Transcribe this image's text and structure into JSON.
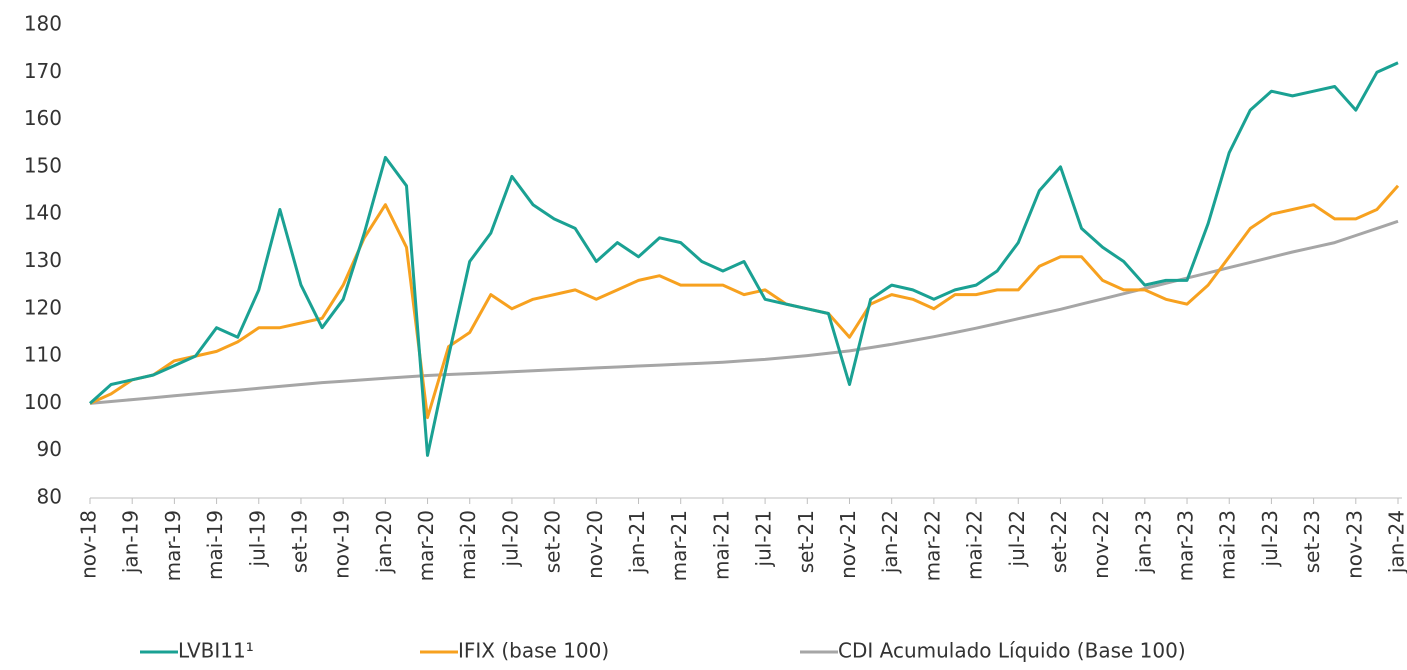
{
  "chart_data": {
    "type": "line",
    "categories": [
      "nov-18",
      null,
      "jan-19",
      null,
      "mar-19",
      null,
      "mai-19",
      null,
      "jul-19",
      null,
      "set-19",
      null,
      "nov-19",
      null,
      "jan-20",
      null,
      "mar-20",
      null,
      "mai-20",
      null,
      "jul-20",
      null,
      "set-20",
      null,
      "nov-20",
      null,
      "jan-21",
      null,
      "mar-21",
      null,
      "mai-21",
      null,
      "jul-21",
      null,
      "set-21",
      null,
      "nov-21",
      null,
      "jan-22",
      null,
      "mar-22",
      null,
      "mai-22",
      null,
      "jul-22",
      null,
      "set-22",
      null,
      "nov-22",
      null,
      "jan-23",
      null,
      "mar-23",
      null,
      "mai-23",
      null,
      "jul-23",
      null,
      "set-23",
      null,
      "nov-23",
      null,
      "jan-24"
    ],
    "series": [
      {
        "name": "LVBI11¹",
        "color": "#1aa193",
        "values": [
          100,
          104,
          105,
          106,
          108,
          110,
          116,
          114,
          124,
          141,
          125,
          116,
          122,
          136,
          152,
          146,
          89,
          110,
          130,
          136,
          148,
          142,
          139,
          137,
          130,
          134,
          131,
          135,
          134,
          130,
          128,
          130,
          122,
          121,
          120,
          119,
          104,
          122,
          125,
          124,
          122,
          124,
          125,
          128,
          134,
          145,
          150,
          137,
          133,
          130,
          125,
          126,
          126,
          138,
          153,
          162,
          166,
          165,
          166,
          167,
          162,
          170,
          172
        ]
      },
      {
        "name": "IFIX (base 100)",
        "color": "#f7a11f",
        "values": [
          100,
          102,
          105,
          106,
          109,
          110,
          111,
          113,
          116,
          116,
          117,
          118,
          125,
          135,
          142,
          133,
          97,
          112,
          115,
          123,
          120,
          122,
          123,
          124,
          122,
          124,
          126,
          127,
          125,
          125,
          125,
          123,
          124,
          121,
          120,
          119,
          114,
          121,
          123,
          122,
          120,
          123,
          123,
          124,
          124,
          129,
          131,
          131,
          126,
          124,
          124,
          122,
          121,
          125,
          131,
          137,
          140,
          141,
          142,
          139,
          139,
          141,
          146
        ]
      },
      {
        "name": "CDI Acumulado Líquido (Base 100)",
        "color": "#a6a6a6",
        "values": [
          100,
          100.4,
          100.8,
          101.2,
          101.6,
          102,
          102.4,
          102.8,
          103.2,
          103.6,
          104,
          104.4,
          104.7,
          105,
          105.3,
          105.6,
          105.9,
          106.1,
          106.3,
          106.5,
          106.7,
          106.9,
          107.1,
          107.3,
          107.5,
          107.7,
          107.9,
          108.1,
          108.3,
          108.5,
          108.7,
          109,
          109.3,
          109.7,
          110.1,
          110.6,
          111.1,
          111.8,
          112.5,
          113.3,
          114.1,
          115,
          115.9,
          116.9,
          117.9,
          118.9,
          119.9,
          121,
          122.1,
          123.2,
          124.3,
          125.4,
          126.5,
          127.6,
          128.7,
          129.8,
          130.9,
          132,
          133,
          134,
          135.5,
          137,
          138.5
        ]
      }
    ],
    "ylim": [
      80,
      180
    ],
    "yticks": [
      80,
      90,
      100,
      110,
      120,
      130,
      140,
      150,
      160,
      170,
      180
    ],
    "grid": false,
    "legend": "bottom"
  }
}
